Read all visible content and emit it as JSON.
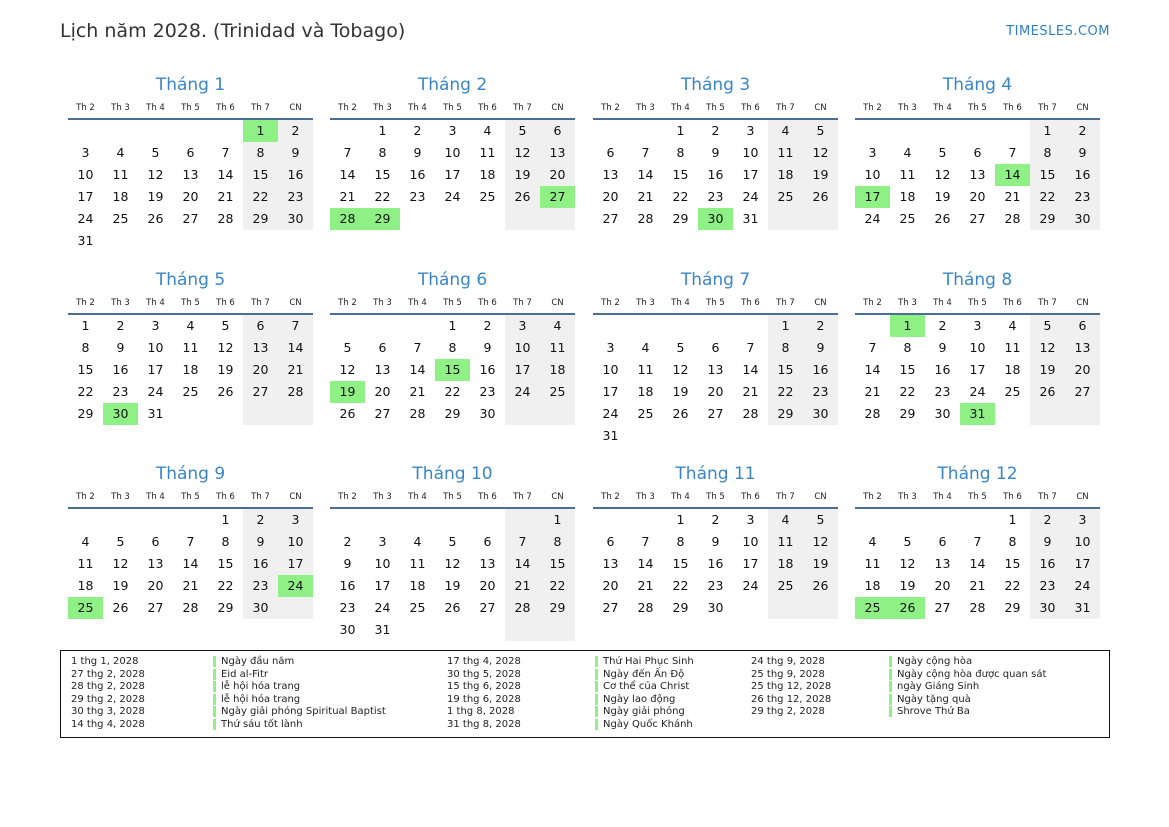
{
  "page": {
    "title": "Lịch năm 2028. (Trinidad và Tobago)",
    "brand": "TIMESLES.COM",
    "weekdays": [
      "Th 2",
      "Th 3",
      "Th 4",
      "Th 5",
      "Th 6",
      "Th 7",
      "CN"
    ],
    "colors": {
      "holiday": "#8ff085",
      "weekend": "#f0f0f0",
      "accent": "#3a86c4",
      "rule": "#4d6e93"
    }
  },
  "months": [
    {
      "name": "Tháng 1",
      "offset": 5,
      "days": 31,
      "holidays": [
        1
      ]
    },
    {
      "name": "Tháng 2",
      "offset": 1,
      "days": 29,
      "holidays": [
        27,
        28,
        29
      ]
    },
    {
      "name": "Tháng 3",
      "offset": 2,
      "days": 31,
      "holidays": [
        30
      ]
    },
    {
      "name": "Tháng 4",
      "offset": 5,
      "days": 30,
      "holidays": [
        14,
        17
      ]
    },
    {
      "name": "Tháng 5",
      "offset": 0,
      "days": 31,
      "holidays": [
        30
      ]
    },
    {
      "name": "Tháng 6",
      "offset": 3,
      "days": 30,
      "holidays": [
        15,
        19
      ]
    },
    {
      "name": "Tháng 7",
      "offset": 5,
      "days": 31,
      "holidays": []
    },
    {
      "name": "Tháng 8",
      "offset": 1,
      "days": 31,
      "holidays": [
        1,
        31
      ]
    },
    {
      "name": "Tháng 9",
      "offset": 4,
      "days": 30,
      "holidays": [
        24,
        25
      ]
    },
    {
      "name": "Tháng 10",
      "offset": 6,
      "days": 31,
      "holidays": []
    },
    {
      "name": "Tháng 11",
      "offset": 2,
      "days": 30,
      "holidays": []
    },
    {
      "name": "Tháng 12",
      "offset": 4,
      "days": 31,
      "holidays": [
        25,
        26
      ]
    }
  ],
  "legend": [
    [
      {
        "date": "1 thg 1, 2028",
        "name": "Ngày đầu năm"
      },
      {
        "date": "27 thg 2, 2028",
        "name": "Eid al-Fitr"
      },
      {
        "date": "28 thg 2, 2028",
        "name": "lễ hội hóa trang"
      },
      {
        "date": "29 thg 2, 2028",
        "name": "lễ hội hóa trang"
      },
      {
        "date": "30 thg 3, 2028",
        "name": "Ngày giải phóng Spiritual Baptist"
      },
      {
        "date": "14 thg 4, 2028",
        "name": "Thứ sáu tốt lành"
      }
    ],
    [
      {
        "date": "17 thg 4, 2028",
        "name": "Thứ Hai Phục Sinh"
      },
      {
        "date": "30 thg 5, 2028",
        "name": "Ngày đến Ấn Độ"
      },
      {
        "date": "15 thg 6, 2028",
        "name": "Cơ thể của Christ"
      },
      {
        "date": "19 thg 6, 2028",
        "name": "Ngày lao động"
      },
      {
        "date": "1 thg 8, 2028",
        "name": "Ngày giải phóng"
      },
      {
        "date": "31 thg 8, 2028",
        "name": "Ngày Quốc Khánh"
      }
    ],
    [
      {
        "date": "24 thg 9, 2028",
        "name": "Ngày cộng hòa"
      },
      {
        "date": "25 thg 9, 2028",
        "name": "Ngày cộng hòa được quan sát"
      },
      {
        "date": "25 thg 12, 2028",
        "name": "ngày Giáng Sinh"
      },
      {
        "date": "26 thg 12, 2028",
        "name": "Ngày tặng quà"
      },
      {
        "date": "29 thg 2, 2028",
        "name": "Shrove Thứ Ba"
      }
    ]
  ]
}
